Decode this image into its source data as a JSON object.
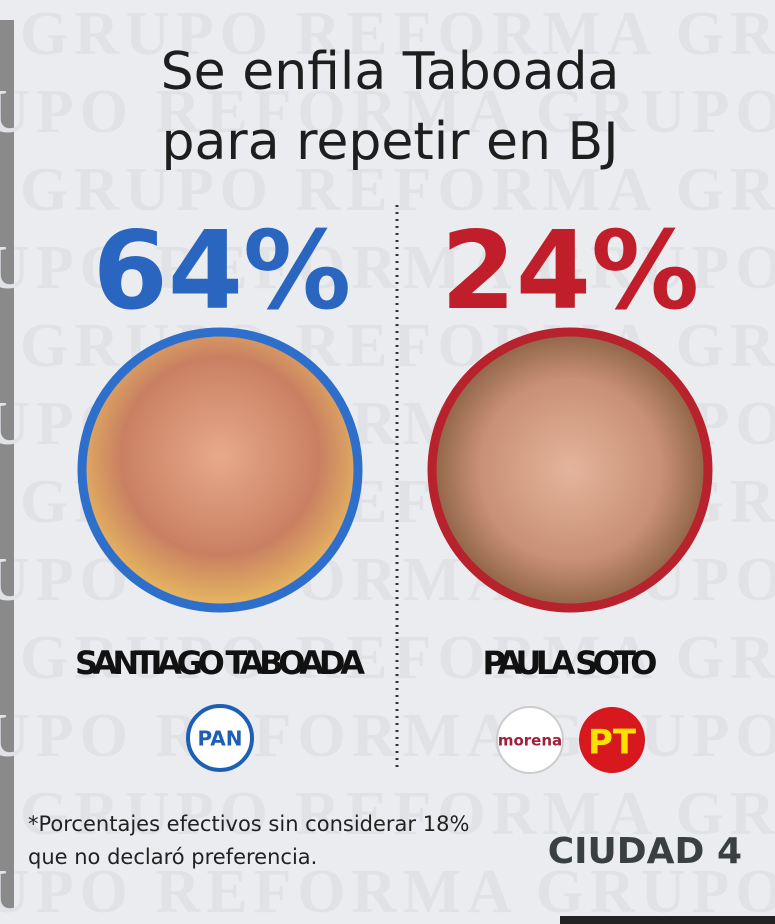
{
  "watermark": "GRUPO REFORMA",
  "title": [
    "Se enfila Taboada",
    "para repetir en BJ"
  ],
  "candidates": [
    {
      "percent": "64%",
      "name": "SANTIAGO TABOADA",
      "parties": [
        "PAN"
      ]
    },
    {
      "percent": "24%",
      "name": "PAULA SOTO",
      "parties": [
        "morena",
        "PT"
      ]
    }
  ],
  "footnote": [
    "*Porcentajes efectivos sin considerar 18%",
    "que no declaró preferencia."
  ],
  "page_label": "CIUDAD 4"
}
